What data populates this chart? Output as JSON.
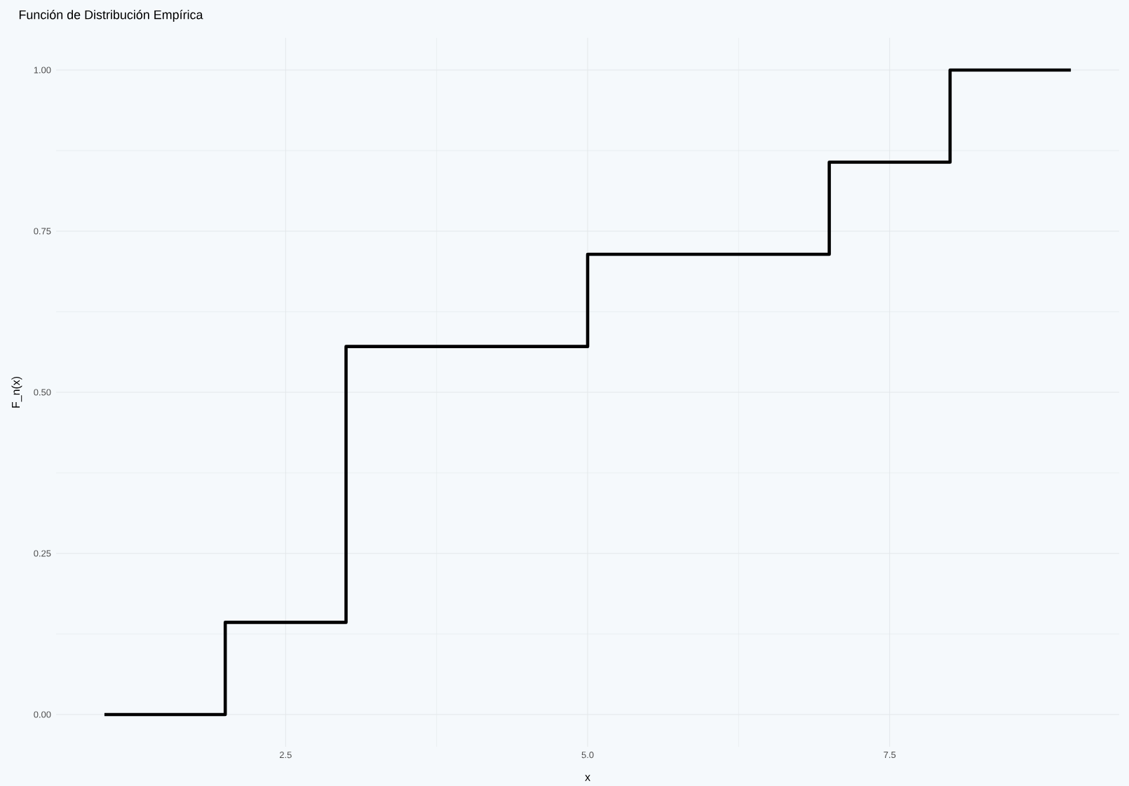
{
  "chart_data": {
    "type": "step",
    "title": "Función de Distribución Empírica",
    "xlabel": "x",
    "ylabel": "F_n(x)",
    "x": [
      1,
      2,
      3,
      5,
      7,
      8,
      9
    ],
    "values": [
      0,
      0.143,
      0.571,
      0.714,
      0.857,
      1,
      1
    ],
    "color": "#000000",
    "xlim": [
      0.6,
      9.4
    ],
    "ylim": [
      -0.05,
      1.05
    ],
    "xticks": [
      {
        "value": 2.5,
        "label": "2.5"
      },
      {
        "value": 5,
        "label": "5.0"
      },
      {
        "value": 7.5,
        "label": "7.5"
      }
    ],
    "yticks": [
      {
        "value": 0,
        "label": "0.00"
      },
      {
        "value": 0.25,
        "label": "0.25"
      },
      {
        "value": 0.5,
        "label": "0.50"
      },
      {
        "value": 0.75,
        "label": "0.75"
      },
      {
        "value": 1,
        "label": "1.00"
      }
    ],
    "grid": true
  }
}
